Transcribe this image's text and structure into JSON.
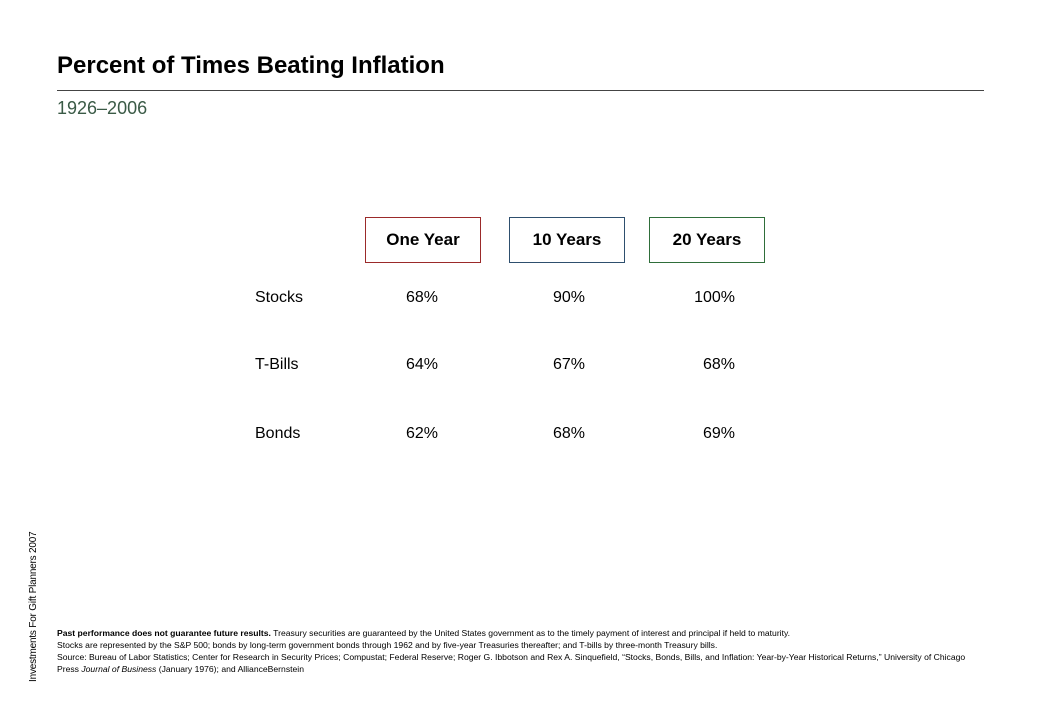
{
  "header": {
    "title": "Percent of Times Beating Inflation",
    "subtitle": "1926–2006"
  },
  "side_label": "Investments For Gift Planners 2007",
  "colors": {
    "subtitle": "#3a5a46",
    "one_year_border": "#9b2a2a",
    "ten_years_border": "#2e4f6e",
    "twenty_years_border": "#2f6e3a"
  },
  "table": {
    "columns": [
      "One Year",
      "10 Years",
      "20 Years"
    ],
    "rows": [
      {
        "label": "Stocks",
        "values": [
          "68%",
          "90%",
          "100%"
        ]
      },
      {
        "label": "T-Bills",
        "values": [
          "64%",
          "67%",
          "68%"
        ]
      },
      {
        "label": "Bonds",
        "values": [
          "62%",
          "68%",
          "69%"
        ]
      }
    ]
  },
  "footnote": {
    "bold_lead": "Past performance does not guarantee future results.",
    "line1_rest": " Treasury securities are guaranteed by the United States government as to the timely payment of interest and principal if held to maturity.",
    "line2": "Stocks are represented by the S&P 500; bonds by long-term government bonds through 1962 and by five-year Treasuries thereafter; and T-bills by three-month Treasury bills.",
    "source_pre": "Source: Bureau of Labor Statistics; Center for Research in Security Prices; Compustat; Federal Reserve; Roger G. Ibbotson and Rex A. Sinquefield, “Stocks, Bonds, Bills, and Inflation: Year-by-Year Historical Returns,” University of Chicago Press ",
    "source_journal": "Journal of Business",
    "source_post": " (January 1976); and AllianceBernstein"
  }
}
